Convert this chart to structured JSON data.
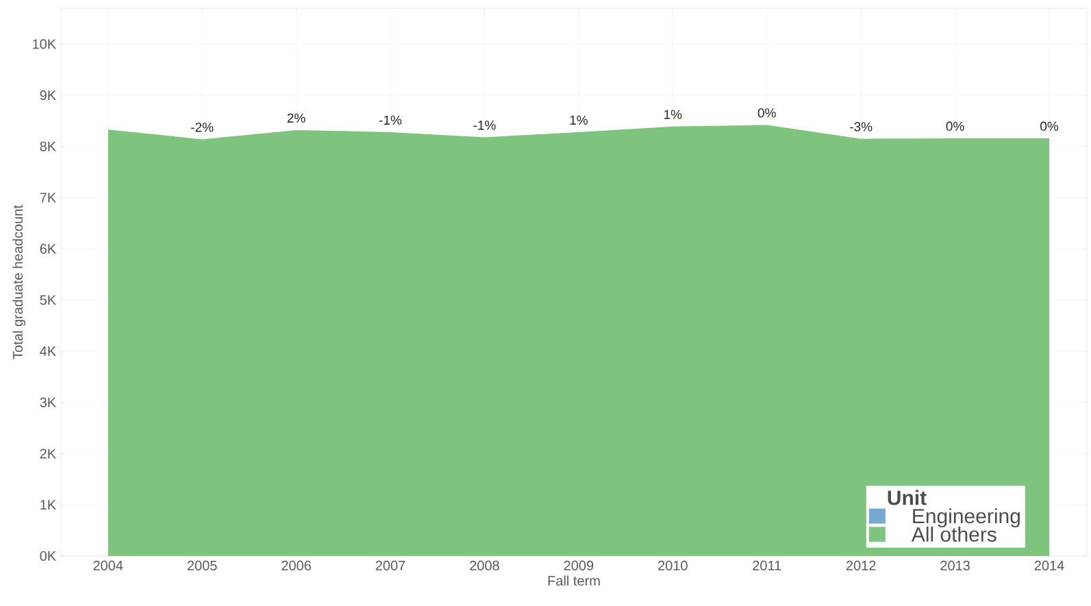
{
  "chart_data": {
    "type": "area",
    "xlabel": "Fall term",
    "ylabel": "Total graduate headcount",
    "legend_title": "Unit",
    "x": [
      2004,
      2005,
      2006,
      2007,
      2008,
      2009,
      2010,
      2011,
      2012,
      2013,
      2014
    ],
    "series": [
      {
        "name": "Engineering",
        "color": "#76a9d1",
        "values": [
          null,
          null,
          null,
          null,
          null,
          null,
          null,
          null,
          null,
          null,
          null
        ]
      },
      {
        "name": "All others",
        "color": "#7fc47e",
        "values": [
          8330,
          8140,
          8320,
          8280,
          8180,
          8280,
          8390,
          8420,
          8150,
          8160,
          8160
        ]
      }
    ],
    "xlim": [
      2003.5,
      2014.4
    ],
    "ylim": [
      0,
      10700
    ],
    "xticks": [
      2004,
      2005,
      2006,
      2007,
      2008,
      2009,
      2010,
      2011,
      2012,
      2013,
      2014
    ],
    "yticks": [
      {
        "value": 0,
        "label": "0K"
      },
      {
        "value": 1000,
        "label": "1K"
      },
      {
        "value": 2000,
        "label": "2K"
      },
      {
        "value": 3000,
        "label": "3K"
      },
      {
        "value": 4000,
        "label": "4K"
      },
      {
        "value": 5000,
        "label": "5K"
      },
      {
        "value": 6000,
        "label": "6K"
      },
      {
        "value": 7000,
        "label": "7K"
      },
      {
        "value": 8000,
        "label": "8K"
      },
      {
        "value": 9000,
        "label": "9K"
      },
      {
        "value": 10000,
        "label": "10K"
      }
    ],
    "annotations": [
      {
        "text": "-2%",
        "x": 2005,
        "y": 8140
      },
      {
        "text": "2%",
        "x": 2006,
        "y": 8320
      },
      {
        "text": "-1%",
        "x": 2007,
        "y": 8280
      },
      {
        "text": "-1%",
        "x": 2008,
        "y": 8180
      },
      {
        "text": "1%",
        "x": 2009,
        "y": 8280
      },
      {
        "text": "1%",
        "x": 2010,
        "y": 8390
      },
      {
        "text": "0%",
        "x": 2011,
        "y": 8420
      },
      {
        "text": "-3%",
        "x": 2012,
        "y": 8150
      },
      {
        "text": "0%",
        "x": 2013,
        "y": 8160
      },
      {
        "text": "0%",
        "x": 2014,
        "y": 8160
      }
    ],
    "grid": true,
    "legend": "bottom right"
  }
}
